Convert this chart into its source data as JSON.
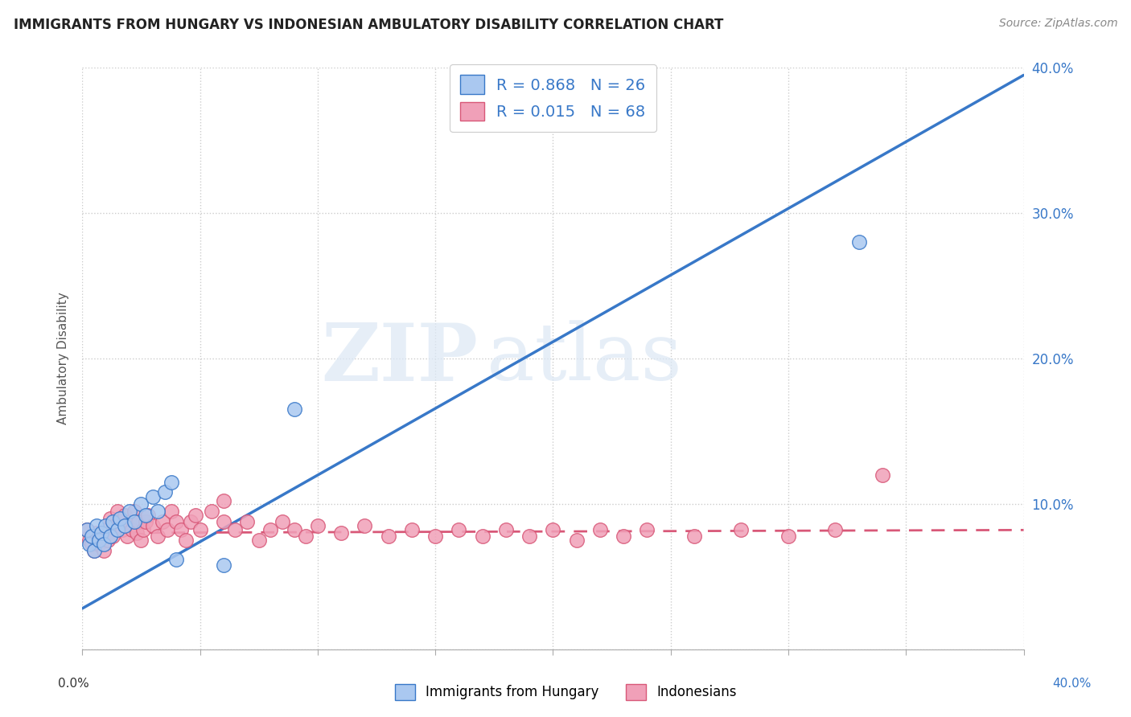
{
  "title": "IMMIGRANTS FROM HUNGARY VS INDONESIAN AMBULATORY DISABILITY CORRELATION CHART",
  "source": "Source: ZipAtlas.com",
  "ylabel": "Ambulatory Disability",
  "legend_label1": "Immigrants from Hungary",
  "legend_label2": "Indonesians",
  "R1": 0.868,
  "N1": 26,
  "R2": 0.015,
  "N2": 68,
  "color_blue": "#aac8f0",
  "color_pink": "#f0a0b8",
  "line_blue": "#3878c8",
  "line_pink": "#d85878",
  "xlim": [
    0.0,
    0.4
  ],
  "ylim": [
    0.0,
    0.4
  ],
  "blue_points": [
    [
      0.002,
      0.082
    ],
    [
      0.003,
      0.072
    ],
    [
      0.004,
      0.078
    ],
    [
      0.005,
      0.068
    ],
    [
      0.006,
      0.085
    ],
    [
      0.007,
      0.075
    ],
    [
      0.008,
      0.08
    ],
    [
      0.009,
      0.072
    ],
    [
      0.01,
      0.085
    ],
    [
      0.012,
      0.078
    ],
    [
      0.013,
      0.088
    ],
    [
      0.015,
      0.082
    ],
    [
      0.016,
      0.09
    ],
    [
      0.018,
      0.085
    ],
    [
      0.02,
      0.095
    ],
    [
      0.022,
      0.088
    ],
    [
      0.025,
      0.1
    ],
    [
      0.027,
      0.092
    ],
    [
      0.03,
      0.105
    ],
    [
      0.032,
      0.095
    ],
    [
      0.035,
      0.108
    ],
    [
      0.038,
      0.115
    ],
    [
      0.04,
      0.062
    ],
    [
      0.06,
      0.058
    ],
    [
      0.09,
      0.165
    ],
    [
      0.33,
      0.28
    ]
  ],
  "pink_points": [
    [
      0.002,
      0.082
    ],
    [
      0.003,
      0.075
    ],
    [
      0.004,
      0.072
    ],
    [
      0.005,
      0.068
    ],
    [
      0.006,
      0.08
    ],
    [
      0.007,
      0.072
    ],
    [
      0.008,
      0.078
    ],
    [
      0.009,
      0.068
    ],
    [
      0.01,
      0.082
    ],
    [
      0.011,
      0.075
    ],
    [
      0.012,
      0.09
    ],
    [
      0.013,
      0.078
    ],
    [
      0.014,
      0.085
    ],
    [
      0.015,
      0.095
    ],
    [
      0.016,
      0.088
    ],
    [
      0.017,
      0.082
    ],
    [
      0.018,
      0.092
    ],
    [
      0.019,
      0.078
    ],
    [
      0.02,
      0.088
    ],
    [
      0.021,
      0.082
    ],
    [
      0.022,
      0.095
    ],
    [
      0.023,
      0.08
    ],
    [
      0.024,
      0.088
    ],
    [
      0.025,
      0.075
    ],
    [
      0.026,
      0.082
    ],
    [
      0.027,
      0.088
    ],
    [
      0.028,
      0.092
    ],
    [
      0.03,
      0.085
    ],
    [
      0.032,
      0.078
    ],
    [
      0.034,
      0.088
    ],
    [
      0.036,
      0.082
    ],
    [
      0.038,
      0.095
    ],
    [
      0.04,
      0.088
    ],
    [
      0.042,
      0.082
    ],
    [
      0.044,
      0.075
    ],
    [
      0.046,
      0.088
    ],
    [
      0.048,
      0.092
    ],
    [
      0.05,
      0.082
    ],
    [
      0.055,
      0.095
    ],
    [
      0.06,
      0.088
    ],
    [
      0.065,
      0.082
    ],
    [
      0.07,
      0.088
    ],
    [
      0.075,
      0.075
    ],
    [
      0.08,
      0.082
    ],
    [
      0.085,
      0.088
    ],
    [
      0.09,
      0.082
    ],
    [
      0.095,
      0.078
    ],
    [
      0.1,
      0.085
    ],
    [
      0.11,
      0.08
    ],
    [
      0.12,
      0.085
    ],
    [
      0.13,
      0.078
    ],
    [
      0.14,
      0.082
    ],
    [
      0.15,
      0.078
    ],
    [
      0.16,
      0.082
    ],
    [
      0.17,
      0.078
    ],
    [
      0.18,
      0.082
    ],
    [
      0.19,
      0.078
    ],
    [
      0.2,
      0.082
    ],
    [
      0.21,
      0.075
    ],
    [
      0.22,
      0.082
    ],
    [
      0.23,
      0.078
    ],
    [
      0.24,
      0.082
    ],
    [
      0.26,
      0.078
    ],
    [
      0.28,
      0.082
    ],
    [
      0.3,
      0.078
    ],
    [
      0.32,
      0.082
    ],
    [
      0.34,
      0.12
    ],
    [
      0.06,
      0.102
    ]
  ],
  "blue_line_x": [
    0.0,
    0.4
  ],
  "blue_line_y": [
    0.028,
    0.395
  ],
  "pink_line_x": [
    0.0,
    0.4
  ],
  "pink_line_y": [
    0.08,
    0.082
  ],
  "yticks": [
    0.0,
    0.1,
    0.2,
    0.3,
    0.4
  ],
  "right_ytick_labels": [
    "",
    "10.0%",
    "20.0%",
    "30.0%",
    "40.0%"
  ],
  "xticks": [
    0.0,
    0.05,
    0.1,
    0.15,
    0.2,
    0.25,
    0.3,
    0.35,
    0.4
  ],
  "watermark1": "ZIP",
  "watermark2": "atlas"
}
